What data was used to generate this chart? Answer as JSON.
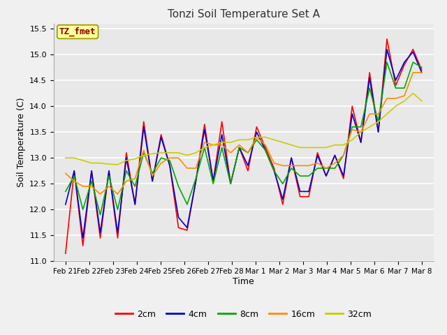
{
  "title": "Tonzi Soil Temperature Set A",
  "xlabel": "Time",
  "ylabel": "Soil Temperature (C)",
  "ylim": [
    11.0,
    15.6
  ],
  "annotation": "TZ_fmet",
  "annotation_color": "#8B0000",
  "annotation_bg": "#FFFF99",
  "bg_color": "#F0F0F0",
  "plot_bg": "#E8E8E8",
  "x_labels": [
    "Feb 21",
    "Feb 22",
    "Feb 23",
    "Feb 24",
    "Feb 25",
    "Feb 26",
    "Feb 27",
    "Feb 28",
    "Mar 1",
    "Mar 2",
    "Mar 3",
    "Mar 4",
    "Mar 5",
    "Mar 6",
    "Mar 7",
    "Mar 8"
  ],
  "legend_labels": [
    "2cm",
    "4cm",
    "8cm",
    "16cm",
    "32cm"
  ],
  "line_colors": [
    "#FF0000",
    "#0000CD",
    "#00AA00",
    "#FF8C00",
    "#CCCC00"
  ],
  "series_2cm": [
    11.15,
    12.75,
    11.3,
    12.75,
    11.45,
    12.75,
    11.45,
    13.1,
    12.1,
    13.7,
    12.55,
    13.45,
    12.85,
    11.65,
    11.6,
    12.55,
    13.65,
    12.55,
    13.7,
    12.5,
    13.2,
    12.75,
    13.6,
    13.2,
    12.8,
    12.1,
    13.0,
    12.25,
    12.25,
    13.1,
    12.65,
    13.05,
    12.6,
    14.0,
    13.3,
    14.65,
    13.5,
    15.3,
    14.4,
    14.8,
    15.1,
    14.7
  ],
  "series_4cm": [
    12.1,
    12.75,
    11.45,
    12.75,
    11.55,
    12.75,
    11.55,
    13.0,
    12.1,
    13.6,
    12.55,
    13.4,
    12.85,
    11.85,
    11.65,
    12.55,
    13.55,
    12.55,
    13.45,
    12.5,
    13.2,
    12.85,
    13.5,
    13.15,
    12.75,
    12.2,
    13.0,
    12.35,
    12.35,
    13.05,
    12.65,
    13.05,
    12.65,
    13.85,
    13.3,
    14.55,
    13.5,
    15.1,
    14.5,
    14.85,
    15.05,
    14.65
  ],
  "series_8cm": [
    12.35,
    12.65,
    12.0,
    12.55,
    11.9,
    12.65,
    12.0,
    12.75,
    12.45,
    13.1,
    12.7,
    13.0,
    12.95,
    12.45,
    12.1,
    12.6,
    13.2,
    12.5,
    13.2,
    12.5,
    13.2,
    13.1,
    13.35,
    13.15,
    12.75,
    12.5,
    12.8,
    12.65,
    12.65,
    12.8,
    12.8,
    12.8,
    13.05,
    13.6,
    13.6,
    14.35,
    13.7,
    14.85,
    14.35,
    14.35,
    14.85,
    14.75
  ],
  "series_16cm": [
    12.7,
    12.55,
    12.45,
    12.45,
    12.3,
    12.45,
    12.3,
    12.55,
    12.6,
    13.15,
    12.65,
    12.9,
    13.0,
    13.0,
    12.8,
    12.8,
    13.3,
    13.25,
    13.25,
    13.1,
    13.25,
    13.1,
    13.4,
    13.25,
    12.9,
    12.85,
    12.85,
    12.85,
    12.85,
    12.9,
    12.8,
    12.9,
    13.05,
    13.55,
    13.5,
    13.85,
    13.85,
    14.15,
    14.15,
    14.2,
    14.65,
    14.65
  ],
  "series_32cm": [
    13.0,
    13.0,
    12.95,
    12.9,
    12.9,
    12.88,
    12.87,
    12.95,
    12.98,
    13.05,
    13.08,
    13.1,
    13.1,
    13.1,
    13.05,
    13.1,
    13.2,
    13.25,
    13.3,
    13.3,
    13.35,
    13.35,
    13.4,
    13.4,
    13.35,
    13.3,
    13.25,
    13.2,
    13.2,
    13.2,
    13.2,
    13.25,
    13.25,
    13.35,
    13.5,
    13.6,
    13.7,
    13.85,
    14.0,
    14.1,
    14.25,
    14.1
  ]
}
